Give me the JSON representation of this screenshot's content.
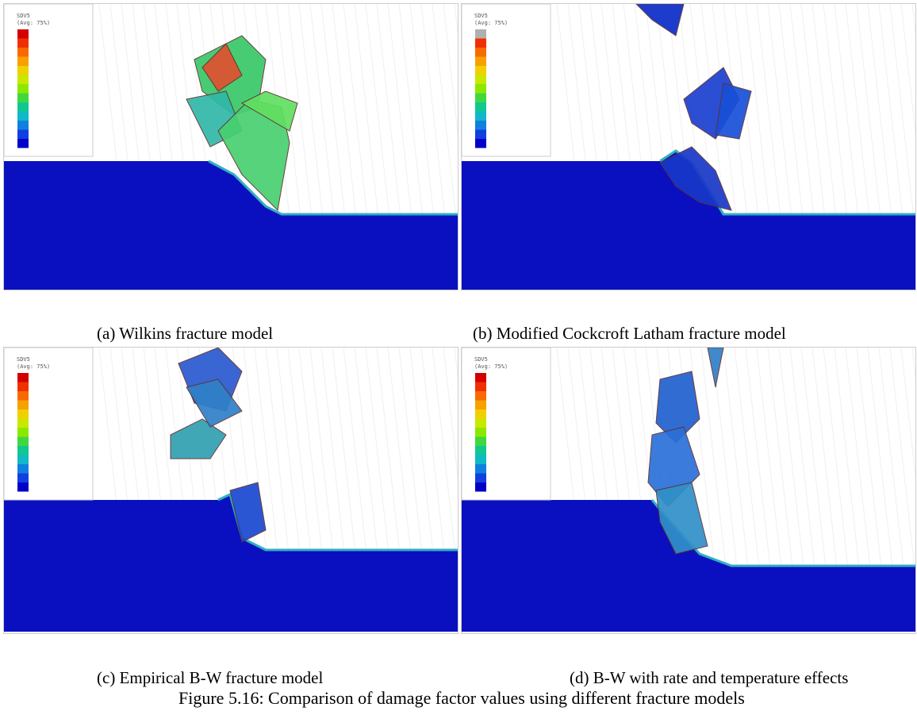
{
  "figure": {
    "panels": [
      {
        "caption": "(a) Wilkins fracture model",
        "legend": {
          "variable": "SDV5",
          "averaging": "(Avg: 75%)"
        }
      },
      {
        "caption": "(b) Modified Cockcroft Latham fracture model",
        "legend": {
          "variable": "SDV5",
          "averaging": "(Avg: 75%)"
        }
      },
      {
        "caption": "(c) Empirical B-W fracture model",
        "legend": {
          "variable": "SDV5",
          "averaging": "(Avg: 75%)"
        }
      },
      {
        "caption": "(d) B-W with rate and temperature effects",
        "legend": {
          "variable": "SDV5",
          "averaging": "(Avg: 75%)"
        }
      }
    ],
    "caption": "Figure 5.16: Comparison of damage factor values using different fracture models"
  }
}
